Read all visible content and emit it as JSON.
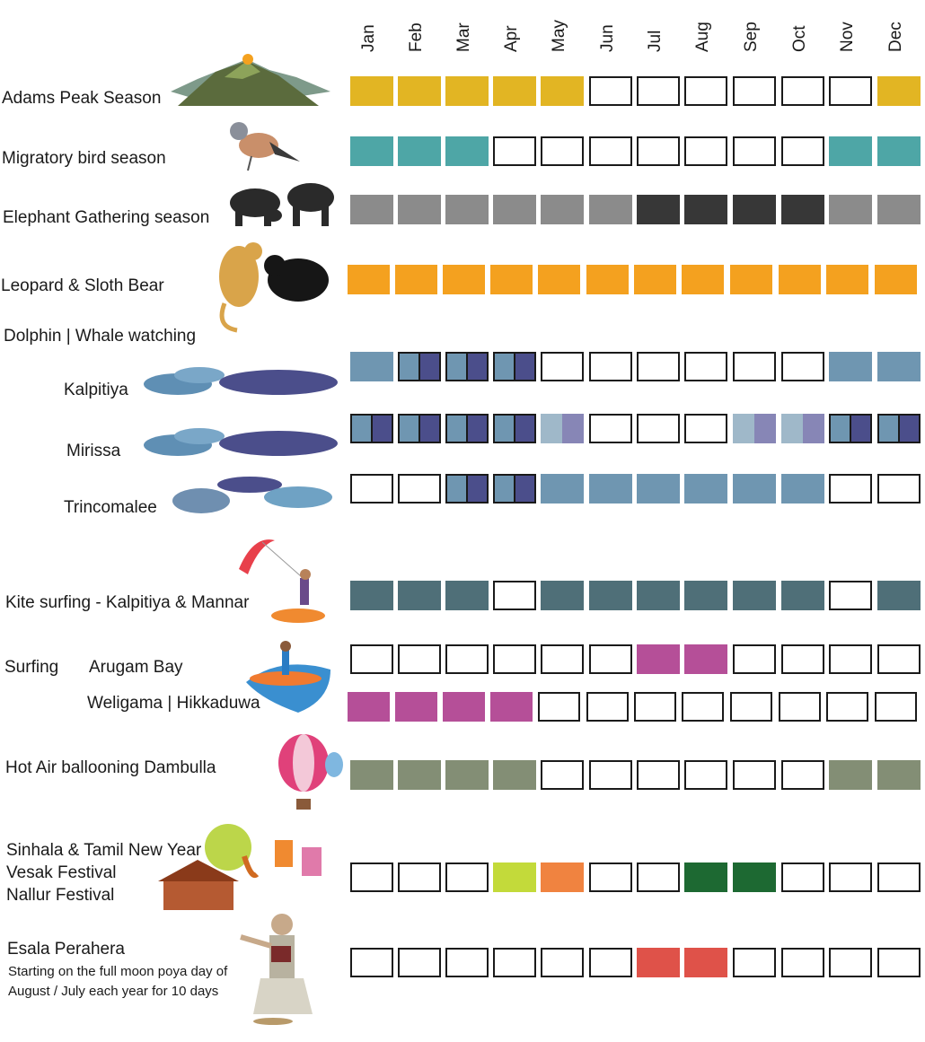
{
  "months": [
    "Jan",
    "Feb",
    "Mar",
    "Apr",
    "May",
    "Jun",
    "Jul",
    "Aug",
    "Sep",
    "Oct",
    "Nov",
    "Dec"
  ],
  "colors": {
    "adams": "#e2b523",
    "bird": "#4ea6a6",
    "elephant_light": "#8b8b8b",
    "elephant_dark": "#373737",
    "leopard": "#f4a11f",
    "dolphin": "#6f96b1",
    "whale": "#4b4e8b",
    "dolphin_soft": "#9fb8c9",
    "whale_soft": "#8786b6",
    "kite": "#4f6f78",
    "surf": "#b54f98",
    "balloon": "#838e75",
    "new_year": "#c3da3a",
    "vesak": "#f08340",
    "nallur": "#1d6932",
    "perahera": "#df5249"
  },
  "rows": [
    {
      "key": "adams",
      "label": "Adams Peak Season",
      "icon": "mountain-icon",
      "cells": [
        "adams",
        "adams",
        "adams",
        "adams",
        "adams",
        "",
        "",
        "",
        "",
        "",
        "",
        "adams"
      ]
    },
    {
      "key": "bird",
      "label": "Migratory bird season",
      "icon": "bird-icon",
      "cells": [
        "bird",
        "bird",
        "bird",
        "",
        "",
        "",
        "",
        "",
        "",
        "",
        "bird",
        "bird"
      ]
    },
    {
      "key": "elephant",
      "label": "Elephant Gathering season",
      "icon": "elephant-icon",
      "cells": [
        "elephant_light",
        "elephant_light",
        "elephant_light",
        "elephant_light",
        "elephant_light",
        "elephant_light",
        "elephant_dark",
        "elephant_dark",
        "elephant_dark",
        "elephant_dark",
        "elephant_light",
        "elephant_light"
      ]
    },
    {
      "key": "leopard",
      "label": "Leopard & Sloth Bear",
      "icon": "leopard-bear-icon",
      "cells": [
        "leopard",
        "leopard",
        "leopard",
        "leopard",
        "leopard",
        "leopard",
        "leopard",
        "leopard",
        "leopard",
        "leopard",
        "leopard",
        "leopard"
      ]
    },
    {
      "key": "kalpitiya",
      "label": "Kalpitiya",
      "icon": "dolphin-whale-icon",
      "cells": [
        "dolphin",
        "split",
        "split",
        "split",
        "",
        "",
        "",
        "",
        "",
        "",
        "dolphin",
        "dolphin"
      ]
    },
    {
      "key": "mirissa",
      "label": "Mirissa",
      "icon": "dolphin-whale-icon",
      "cells": [
        "split",
        "split",
        "split",
        "split",
        "soft",
        "",
        "",
        "",
        "soft",
        "soft",
        "split",
        "split"
      ]
    },
    {
      "key": "trinco",
      "label": "Trincomalee",
      "icon": "whale-dolphin-icon",
      "cells": [
        "",
        "",
        "split",
        "split",
        "dolphin",
        "dolphin",
        "dolphin",
        "dolphin",
        "dolphin",
        "dolphin",
        "",
        ""
      ]
    },
    {
      "key": "kite",
      "label": "Kite surfing - Kalpitiya & Mannar",
      "icon": "kite-surfer-icon",
      "cells": [
        "kite",
        "kite",
        "kite",
        "",
        "kite",
        "kite",
        "kite",
        "kite",
        "kite",
        "kite",
        "",
        "kite"
      ]
    },
    {
      "key": "arugam",
      "label": "Arugam Bay",
      "icon": "surfer-icon",
      "cells": [
        "",
        "",
        "",
        "",
        "",
        "",
        "surf",
        "surf",
        "",
        "",
        "",
        ""
      ]
    },
    {
      "key": "weligama",
      "label": "Weligama | Hikkaduwa",
      "icon": "",
      "cells": [
        "surf",
        "surf",
        "surf",
        "surf",
        "",
        "",
        "",
        "",
        "",
        "",
        "",
        ""
      ]
    },
    {
      "key": "balloon",
      "label": "Hot Air ballooning Dambulla",
      "icon": "balloon-icon",
      "cells": [
        "balloon",
        "balloon",
        "balloon",
        "balloon",
        "",
        "",
        "",
        "",
        "",
        "",
        "balloon",
        "balloon"
      ]
    },
    {
      "key": "festivals",
      "label": "",
      "icon": "festival-icon",
      "cells": [
        "",
        "",
        "",
        "new_year",
        "vesak",
        "",
        "",
        "nallur",
        "nallur",
        "",
        "",
        ""
      ]
    },
    {
      "key": "perahera",
      "label": "Esala Perahera",
      "icon": "dancer-icon",
      "cells": [
        "",
        "",
        "",
        "",
        "",
        "",
        "perahera",
        "perahera",
        "",
        "",
        "",
        ""
      ]
    }
  ],
  "headings": {
    "dolphin": "Dolphin | Whale watching",
    "surfing": "Surfing"
  },
  "festival_labels": [
    "Sinhala & Tamil New Year",
    "Vesak Festival",
    "Nallur Festival"
  ],
  "perahera_note": [
    "Starting on the full moon poya day of",
    "August / July each year for 10 days"
  ]
}
